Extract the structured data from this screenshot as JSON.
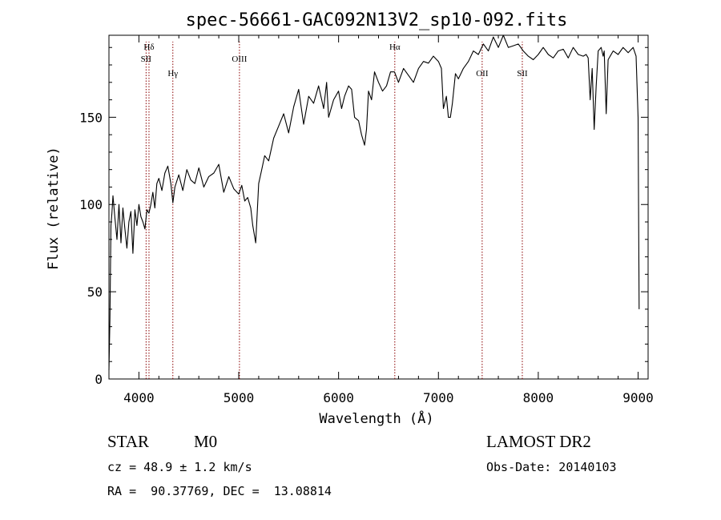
{
  "chart_data": {
    "type": "line",
    "title": "spec-56661-GAC092N13V2_sp10-092.fits",
    "xlabel": "Wavelength (Å)",
    "ylabel": "Flux (relative)",
    "xlim": [
      3700,
      9100
    ],
    "ylim": [
      0,
      197
    ],
    "x_ticks": [
      4000,
      5000,
      6000,
      7000,
      8000,
      9000
    ],
    "y_ticks": [
      0,
      50,
      100,
      150
    ],
    "grid": false,
    "line_color": "#000000",
    "series": [
      {
        "x": [
          3700,
          3710,
          3720,
          3730,
          3740,
          3760,
          3780,
          3800,
          3820,
          3840,
          3860,
          3880,
          3900,
          3920,
          3940,
          3960,
          3980,
          4000,
          4020,
          4040,
          4060,
          4080,
          4100,
          4120,
          4140,
          4160,
          4180,
          4200,
          4230,
          4260,
          4290,
          4320,
          4340,
          4360,
          4400,
          4440,
          4480,
          4520,
          4560,
          4600,
          4650,
          4700,
          4750,
          4800,
          4850,
          4900,
          4950,
          5000,
          5030,
          5060,
          5090,
          5120,
          5140,
          5170,
          5200,
          5230,
          5260,
          5300,
          5350,
          5400,
          5450,
          5500,
          5550,
          5600,
          5650,
          5700,
          5750,
          5800,
          5850,
          5880,
          5900,
          5950,
          6000,
          6030,
          6060,
          6100,
          6130,
          6160,
          6200,
          6230,
          6260,
          6280,
          6300,
          6330,
          6360,
          6400,
          6440,
          6480,
          6520,
          6560,
          6600,
          6650,
          6700,
          6750,
          6800,
          6850,
          6900,
          6950,
          7000,
          7030,
          7050,
          7080,
          7100,
          7120,
          7140,
          7170,
          7200,
          7250,
          7300,
          7350,
          7400,
          7450,
          7500,
          7550,
          7600,
          7650,
          7700,
          7750,
          7800,
          7850,
          7900,
          7950,
          8000,
          8050,
          8100,
          8150,
          8200,
          8250,
          8300,
          8350,
          8400,
          8450,
          8480,
          8500,
          8520,
          8540,
          8560,
          8580,
          8600,
          8630,
          8650,
          8660,
          8680,
          8700,
          8750,
          8800,
          8850,
          8900,
          8950,
          8980,
          9000,
          9010
        ],
        "y": [
          5,
          34,
          88,
          95,
          105,
          92,
          80,
          100,
          78,
          98,
          86,
          75,
          90,
          96,
          72,
          97,
          88,
          100,
          93,
          90,
          86,
          97,
          95,
          100,
          107,
          98,
          112,
          115,
          108,
          118,
          122,
          112,
          101,
          110,
          117,
          108,
          120,
          114,
          112,
          121,
          110,
          116,
          118,
          123,
          107,
          116,
          109,
          106,
          111,
          102,
          104,
          98,
          88,
          78,
          112,
          120,
          128,
          125,
          138,
          145,
          152,
          141,
          156,
          166,
          146,
          162,
          158,
          168,
          155,
          170,
          150,
          160,
          165,
          155,
          162,
          168,
          166,
          150,
          148,
          140,
          134,
          143,
          165,
          160,
          176,
          170,
          165,
          168,
          176,
          176,
          170,
          178,
          174,
          170,
          178,
          182,
          181,
          185,
          182,
          178,
          155,
          162,
          150,
          150,
          158,
          175,
          172,
          178,
          182,
          188,
          186,
          192,
          188,
          196,
          190,
          197,
          190,
          191,
          192,
          188,
          185,
          183,
          186,
          190,
          186,
          184,
          188,
          189,
          184,
          190,
          186,
          185,
          186,
          184,
          160,
          178,
          143,
          168,
          188,
          190,
          185,
          188,
          152,
          183,
          188,
          186,
          190,
          187,
          190,
          185,
          150,
          40
        ]
      }
    ],
    "lines": [
      {
        "name": "Hδ",
        "x": 4101
      },
      {
        "name": "SII",
        "x": 4072
      },
      {
        "name": "Hγ",
        "x": 4340
      },
      {
        "name": "OIII",
        "x": 5007
      },
      {
        "name": "Hα",
        "x": 6563
      },
      {
        "name": "OII",
        "x": 7438
      },
      {
        "name": "SII",
        "x": 7840
      }
    ]
  },
  "info": {
    "class_label": "STAR",
    "subclass": "M0",
    "survey": "LAMOST DR2",
    "cz_text": "cz = 48.9 ± 1.2 km/s",
    "obs_date_text": "Obs-Date: 20140103",
    "radec_text": "RA =  90.37769, DEC =  13.08814"
  }
}
